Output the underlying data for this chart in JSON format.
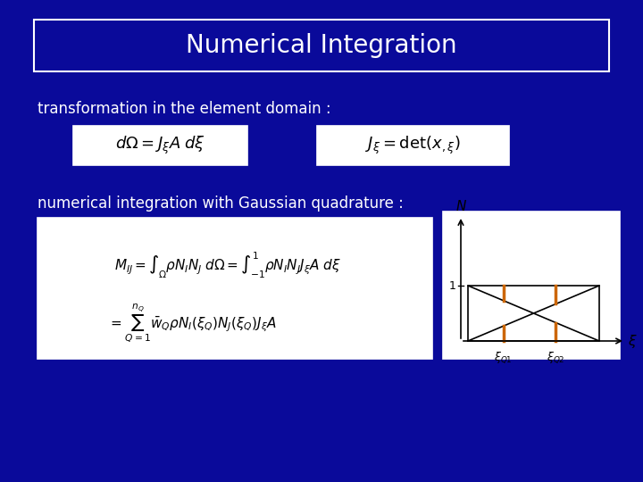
{
  "bg_color": "#0A0A9A",
  "title": "Numerical Integration",
  "text1": "transformation in the element domain :",
  "text2": "numerical integration with Gaussian quadrature :",
  "orange_color": "#CC6600",
  "title_fontsize": 20,
  "text_fontsize": 12,
  "formula_fontsize": 12
}
